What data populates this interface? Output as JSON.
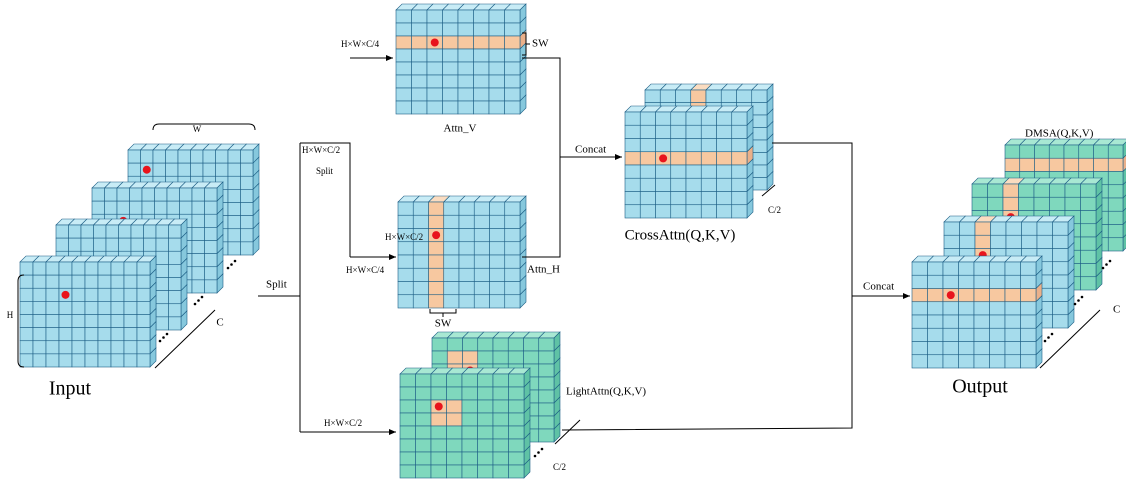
{
  "input": {
    "width_label": "W",
    "height_label": "H",
    "channel_label": "C",
    "title": "Input"
  },
  "split": {
    "main_label": "Split",
    "shape_label": "H×W×C/2",
    "small_label": "Split"
  },
  "attn_v": {
    "shape_label": "H×W×C/4",
    "window_label": "SW",
    "title": "Attn_V"
  },
  "attn_h": {
    "inner_label": "H×W×C/2",
    "shape_label": "H×W×C/4",
    "title": "Attn_H",
    "window_label": "SW"
  },
  "concat_top": {
    "label": "Concat"
  },
  "cross_attn": {
    "title": "CrossAttn(Q,K,V)",
    "channel_label": "C/2"
  },
  "light_attn": {
    "shape_label": "H×W×C/2",
    "title": "LightAttn(Q,K,V)",
    "channel_label": "C/2"
  },
  "concat_out": {
    "label": "Concat"
  },
  "output": {
    "dmsa_label": "DMSA(Q,K,V)",
    "channel_label": "C",
    "title": "Output"
  }
}
